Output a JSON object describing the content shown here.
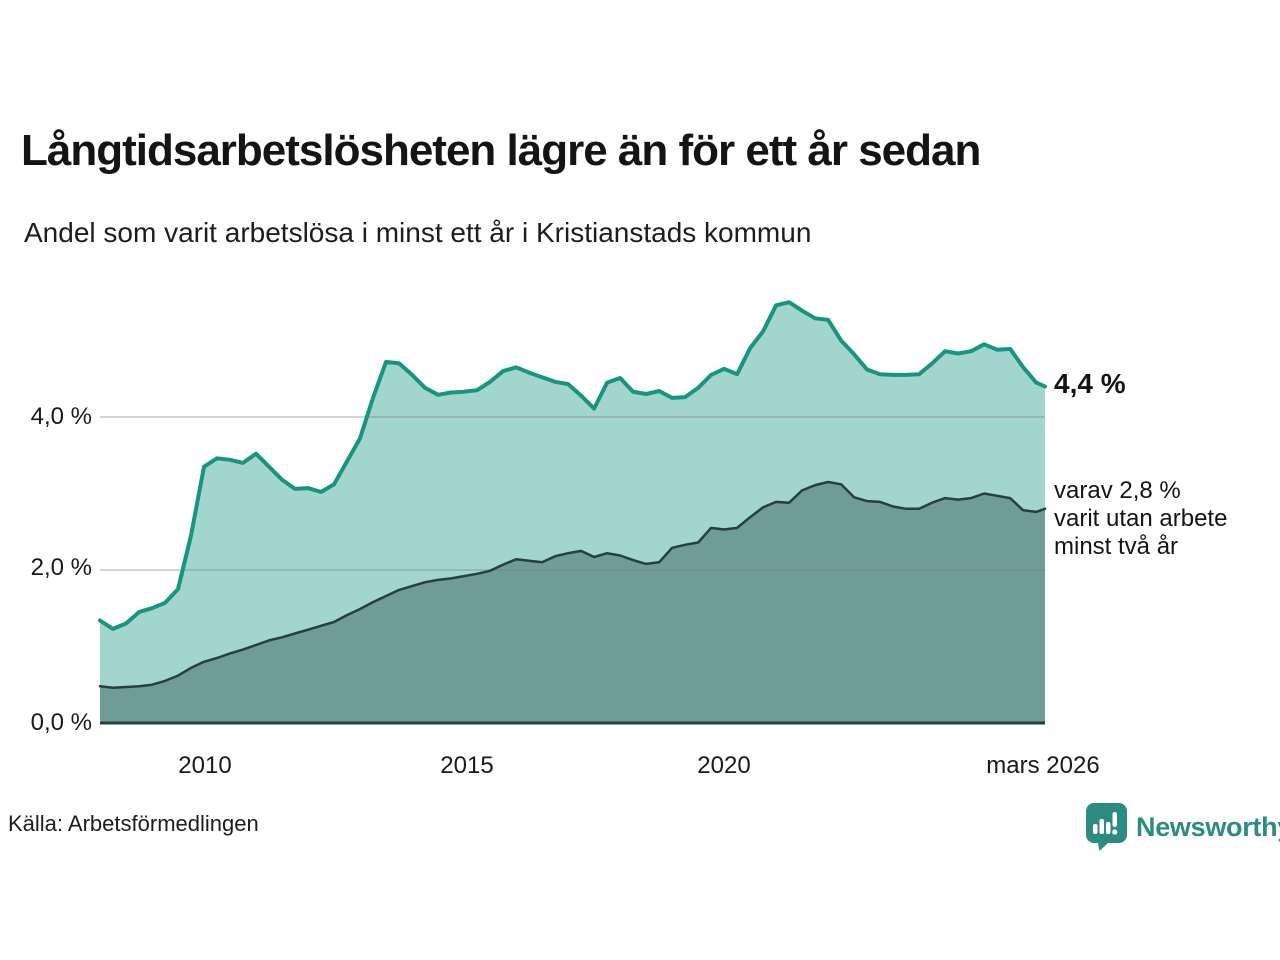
{
  "header": {
    "title": "Långtidsarbetslösheten lägre än för ett år sedan",
    "subtitle": "Andel som varit arbetslösa i minst ett år i Kristianstads kommun"
  },
  "annotations": {
    "total_label": "4,4 %",
    "twoplus_lines": [
      "varav 2,8 %",
      "varit utan arbete",
      "minst två år"
    ]
  },
  "footer": {
    "source": "Källa: Arbetsförmedlingen",
    "logo_text": "Newsworthy"
  },
  "chart_data": {
    "type": "area",
    "title": "Långtidsarbetslösheten lägre än för ett år sedan",
    "subtitle": "Andel som varit arbetslösa i minst ett år i Kristianstads kommun",
    "unit": "%",
    "xlim": [
      2008.0,
      2026.17
    ],
    "ylim": [
      0,
      5.66
    ],
    "grid": "horizontal",
    "legend_position": "none",
    "end_labels": {
      "total": "4,4 %",
      "twoplus": "varav 2,8 % varit utan arbete minst två år"
    },
    "yticks": [
      {
        "value": 0,
        "label": "0,0 %"
      },
      {
        "value": 2,
        "label": "2,0 %"
      },
      {
        "value": 4,
        "label": "4,0 %"
      }
    ],
    "xticks": [
      {
        "value": 2010,
        "label": "2010"
      },
      {
        "value": 2015,
        "label": "2015"
      },
      {
        "value": 2020,
        "label": "2020"
      },
      {
        "value": 2026.17,
        "label": "mars 2026"
      }
    ],
    "x": [
      2008.0,
      2008.25,
      2008.5,
      2008.75,
      2009.0,
      2009.25,
      2009.5,
      2009.75,
      2010.0,
      2010.25,
      2010.5,
      2010.75,
      2011.0,
      2011.25,
      2011.5,
      2011.75,
      2012.0,
      2012.25,
      2012.5,
      2012.75,
      2013.0,
      2013.25,
      2013.5,
      2013.75,
      2014.0,
      2014.25,
      2014.5,
      2014.75,
      2015.0,
      2015.25,
      2015.5,
      2015.75,
      2016.0,
      2016.25,
      2016.5,
      2016.75,
      2017.0,
      2017.25,
      2017.5,
      2017.75,
      2018.0,
      2018.25,
      2018.5,
      2018.75,
      2019.0,
      2019.25,
      2019.5,
      2019.75,
      2020.0,
      2020.25,
      2020.5,
      2020.75,
      2021.0,
      2021.25,
      2021.5,
      2021.75,
      2022.0,
      2022.25,
      2022.5,
      2022.75,
      2023.0,
      2023.25,
      2023.5,
      2023.75,
      2024.0,
      2024.25,
      2024.5,
      2024.75,
      2025.0,
      2025.25,
      2025.5,
      2025.75,
      2026.0,
      2026.17
    ],
    "series": [
      {
        "name": "Andel arbetslösa minst ett år",
        "fill": "#a3d5cf",
        "stroke": "#17957f",
        "stroke_width": 4,
        "values": [
          1.34,
          1.23,
          1.3,
          1.45,
          1.5,
          1.57,
          1.75,
          2.45,
          3.35,
          3.46,
          3.44,
          3.4,
          3.52,
          3.35,
          3.18,
          3.06,
          3.07,
          3.02,
          3.12,
          3.42,
          3.72,
          4.25,
          4.72,
          4.7,
          4.55,
          4.38,
          4.29,
          4.32,
          4.33,
          4.35,
          4.46,
          4.6,
          4.65,
          4.58,
          4.52,
          4.46,
          4.43,
          4.28,
          4.11,
          4.45,
          4.51,
          4.33,
          4.3,
          4.34,
          4.25,
          4.26,
          4.38,
          4.55,
          4.63,
          4.56,
          4.9,
          5.12,
          5.46,
          5.5,
          5.39,
          5.29,
          5.27,
          5.0,
          4.82,
          4.62,
          4.56,
          4.55,
          4.55,
          4.56,
          4.7,
          4.86,
          4.83,
          4.86,
          4.95,
          4.88,
          4.89,
          4.65,
          4.45,
          4.4
        ]
      },
      {
        "name": "Andel utan arbete minst två år",
        "fill": "#6f9c97",
        "stroke": "#25403d",
        "stroke_width": 2.5,
        "values": [
          0.48,
          0.46,
          0.47,
          0.48,
          0.5,
          0.55,
          0.62,
          0.72,
          0.8,
          0.85,
          0.91,
          0.96,
          1.02,
          1.08,
          1.12,
          1.17,
          1.22,
          1.27,
          1.32,
          1.41,
          1.49,
          1.58,
          1.66,
          1.74,
          1.79,
          1.84,
          1.87,
          1.89,
          1.92,
          1.95,
          1.99,
          2.07,
          2.14,
          2.12,
          2.1,
          2.18,
          2.22,
          2.25,
          2.17,
          2.22,
          2.19,
          2.13,
          2.08,
          2.1,
          2.29,
          2.33,
          2.36,
          2.55,
          2.53,
          2.55,
          2.69,
          2.82,
          2.89,
          2.88,
          3.04,
          3.11,
          3.15,
          3.12,
          2.95,
          2.9,
          2.89,
          2.83,
          2.8,
          2.8,
          2.88,
          2.94,
          2.92,
          2.94,
          3.0,
          2.97,
          2.94,
          2.78,
          2.76,
          2.8
        ]
      }
    ],
    "colors": {
      "grid": "#d8d8d8",
      "baseline": "#25403d",
      "accent": "#17957f",
      "logo": "#2d8b82"
    }
  }
}
